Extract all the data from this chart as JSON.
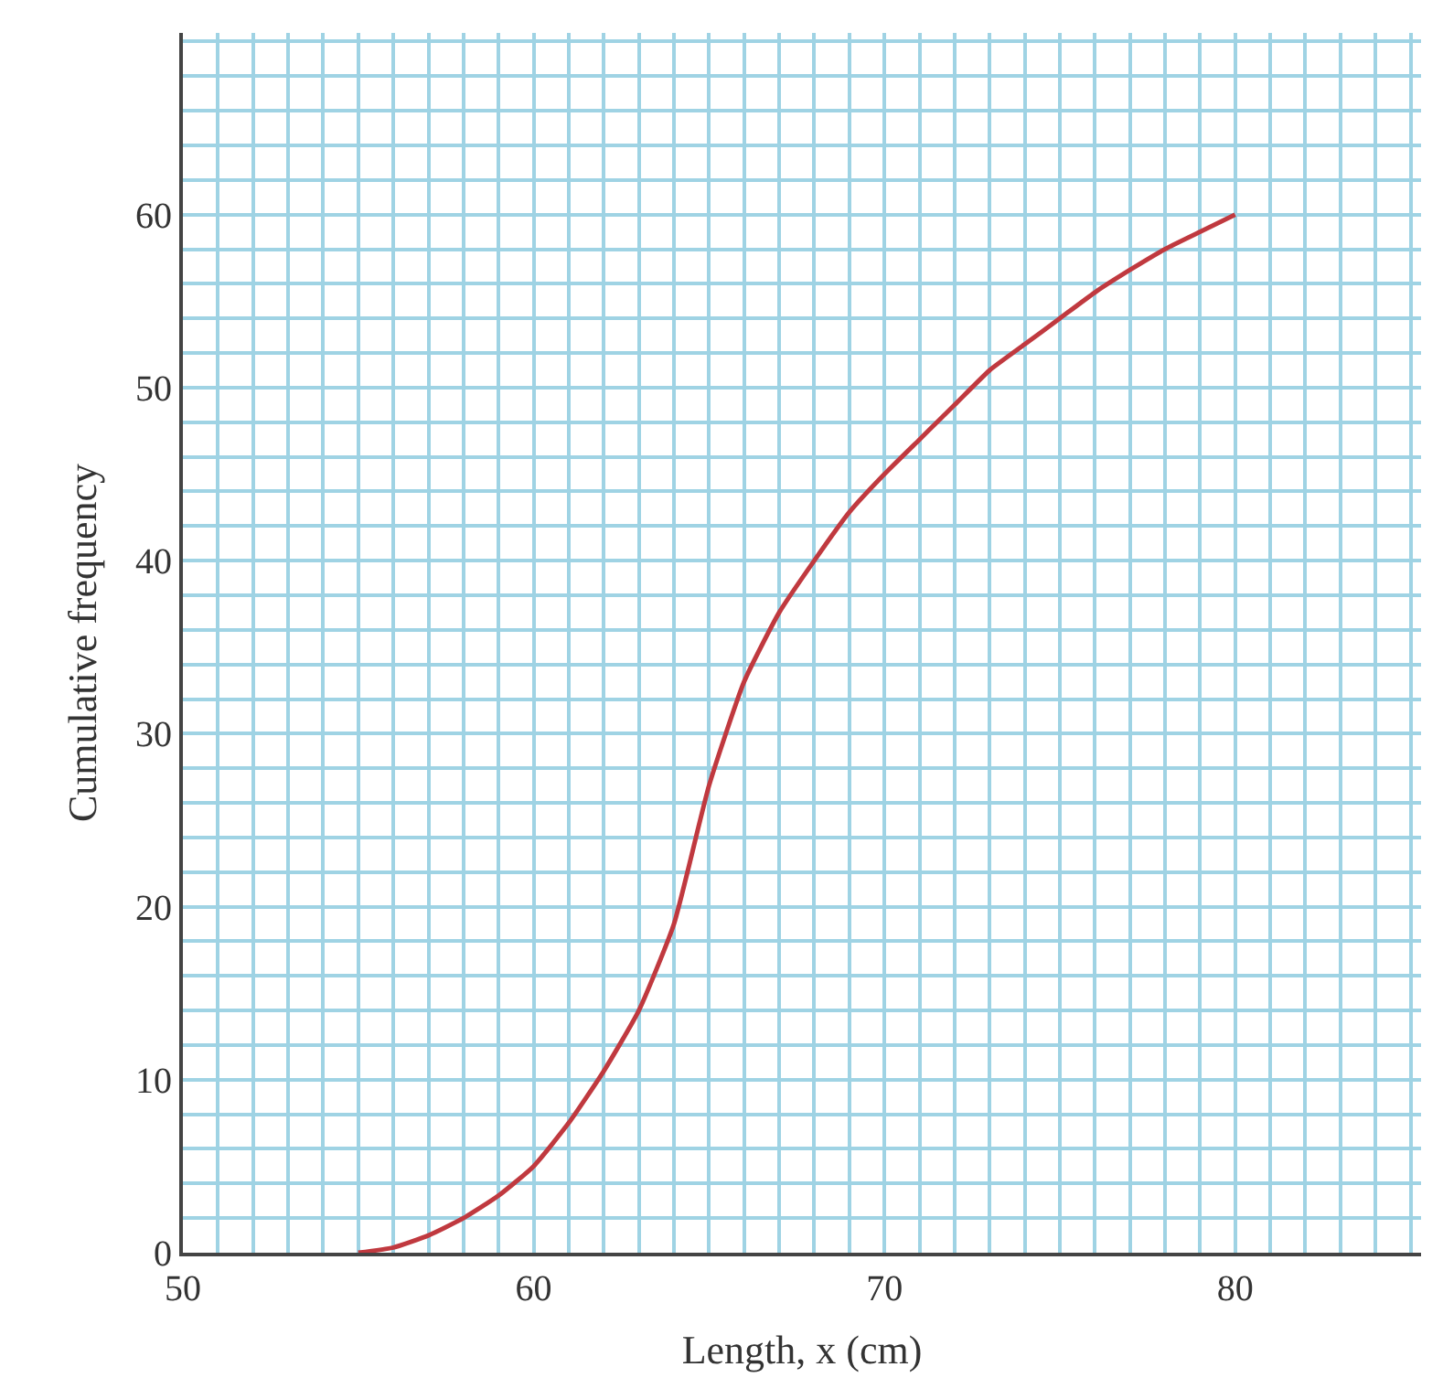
{
  "chart_data": {
    "type": "line",
    "xlabel": "Length, x (cm)",
    "ylabel": "Cumulative frequency",
    "x": [
      55,
      56,
      57,
      58,
      59,
      60,
      61,
      62,
      63,
      64,
      65,
      66,
      67,
      68,
      69,
      70,
      71,
      72,
      73,
      74,
      75,
      76,
      77,
      78,
      79,
      80
    ],
    "series": [
      {
        "color": "#c0393f",
        "values": [
          0,
          0.3,
          1,
          2,
          3.3,
          5,
          7.5,
          10.5,
          14,
          19,
          27,
          33,
          37,
          40,
          42.8,
          45,
          47,
          49,
          51,
          52.5,
          54,
          55.5,
          56.8,
          58,
          59,
          60
        ]
      }
    ],
    "xlim": [
      50,
      85.3
    ],
    "ylim": [
      0,
      70.5
    ],
    "xticks": [
      50,
      {
        "value": 51,
        "label": null
      },
      {
        "value": 52,
        "label": null
      },
      {
        "value": 53,
        "label": null
      },
      {
        "value": 54,
        "label": null
      },
      {
        "value": 55,
        "label": null
      },
      {
        "value": 56,
        "label": null
      },
      {
        "value": 57,
        "label": null
      },
      {
        "value": 58,
        "label": null
      },
      {
        "value": 59,
        "label": null
      },
      60,
      {
        "value": 61,
        "label": null
      },
      {
        "value": 62,
        "label": null
      },
      {
        "value": 63,
        "label": null
      },
      {
        "value": 64,
        "label": null
      },
      {
        "value": 65,
        "label": null
      },
      {
        "value": 66,
        "label": null
      },
      {
        "value": 67,
        "label": null
      },
      {
        "value": 68,
        "label": null
      },
      {
        "value": 69,
        "label": null
      },
      70,
      {
        "value": 71,
        "label": null
      },
      {
        "value": 72,
        "label": null
      },
      {
        "value": 73,
        "label": null
      },
      {
        "value": 74,
        "label": null
      },
      {
        "value": 75,
        "label": null
      },
      {
        "value": 76,
        "label": null
      },
      {
        "value": 77,
        "label": null
      },
      {
        "value": 78,
        "label": null
      },
      {
        "value": 79,
        "label": null
      },
      80,
      {
        "value": 81,
        "label": null
      },
      {
        "value": 82,
        "label": null
      },
      {
        "value": 83,
        "label": null
      },
      {
        "value": 84,
        "label": null
      },
      {
        "value": 85,
        "label": null
      }
    ],
    "yticks": [
      0,
      {
        "value": 2,
        "label": null
      },
      {
        "value": 4,
        "label": null
      },
      {
        "value": 6,
        "label": null
      },
      {
        "value": 8,
        "label": null
      },
      10,
      {
        "value": 12,
        "label": null
      },
      {
        "value": 14,
        "label": null
      },
      {
        "value": 16,
        "label": null
      },
      {
        "value": 18,
        "label": null
      },
      20,
      {
        "value": 22,
        "label": null
      },
      {
        "value": 24,
        "label": null
      },
      {
        "value": 26,
        "label": null
      },
      {
        "value": 28,
        "label": null
      },
      30,
      {
        "value": 32,
        "label": null
      },
      {
        "value": 34,
        "label": null
      },
      {
        "value": 36,
        "label": null
      },
      {
        "value": 38,
        "label": null
      },
      40,
      {
        "value": 42,
        "label": null
      },
      {
        "value": 44,
        "label": null
      },
      {
        "value": 46,
        "label": null
      },
      {
        "value": 48,
        "label": null
      },
      50,
      {
        "value": 52,
        "label": null
      },
      {
        "value": 54,
        "label": null
      },
      {
        "value": 56,
        "label": null
      },
      {
        "value": 58,
        "label": null
      },
      60,
      {
        "value": 62,
        "label": null
      },
      {
        "value": 64,
        "label": null
      },
      {
        "value": 66,
        "label": null
      },
      {
        "value": 68,
        "label": null
      },
      {
        "value": 70,
        "label": null
      }
    ],
    "grid": true,
    "marker": "none",
    "line_style": "solid"
  }
}
